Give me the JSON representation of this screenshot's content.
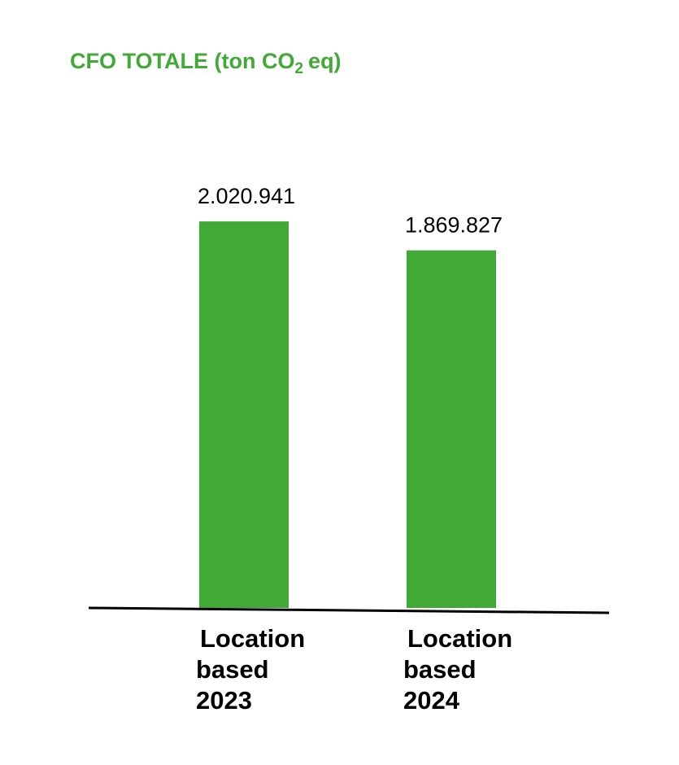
{
  "colors": {
    "bar": "#41aa37",
    "title": "#41aa37",
    "axis": "#000000",
    "text": "#000000"
  },
  "chart_data": {
    "type": "bar",
    "title": "CFO TOTALE (ton CO₂ eq)",
    "title_parts": {
      "main": "CFO TOTALE (ton CO",
      "sub": "2",
      "tail": "eq)"
    },
    "categories": [
      {
        "line1": "Location",
        "line2": "based",
        "line3": "2023"
      },
      {
        "line1": "Location",
        "line2": "based",
        "line3": "2024"
      }
    ],
    "values": [
      2020941,
      1869827
    ],
    "value_labels": [
      "2.020.941",
      "1.869.827"
    ],
    "xlabel": "",
    "ylabel": "",
    "ylim": [
      0,
      2234000
    ],
    "grid": false,
    "legend": "none"
  }
}
